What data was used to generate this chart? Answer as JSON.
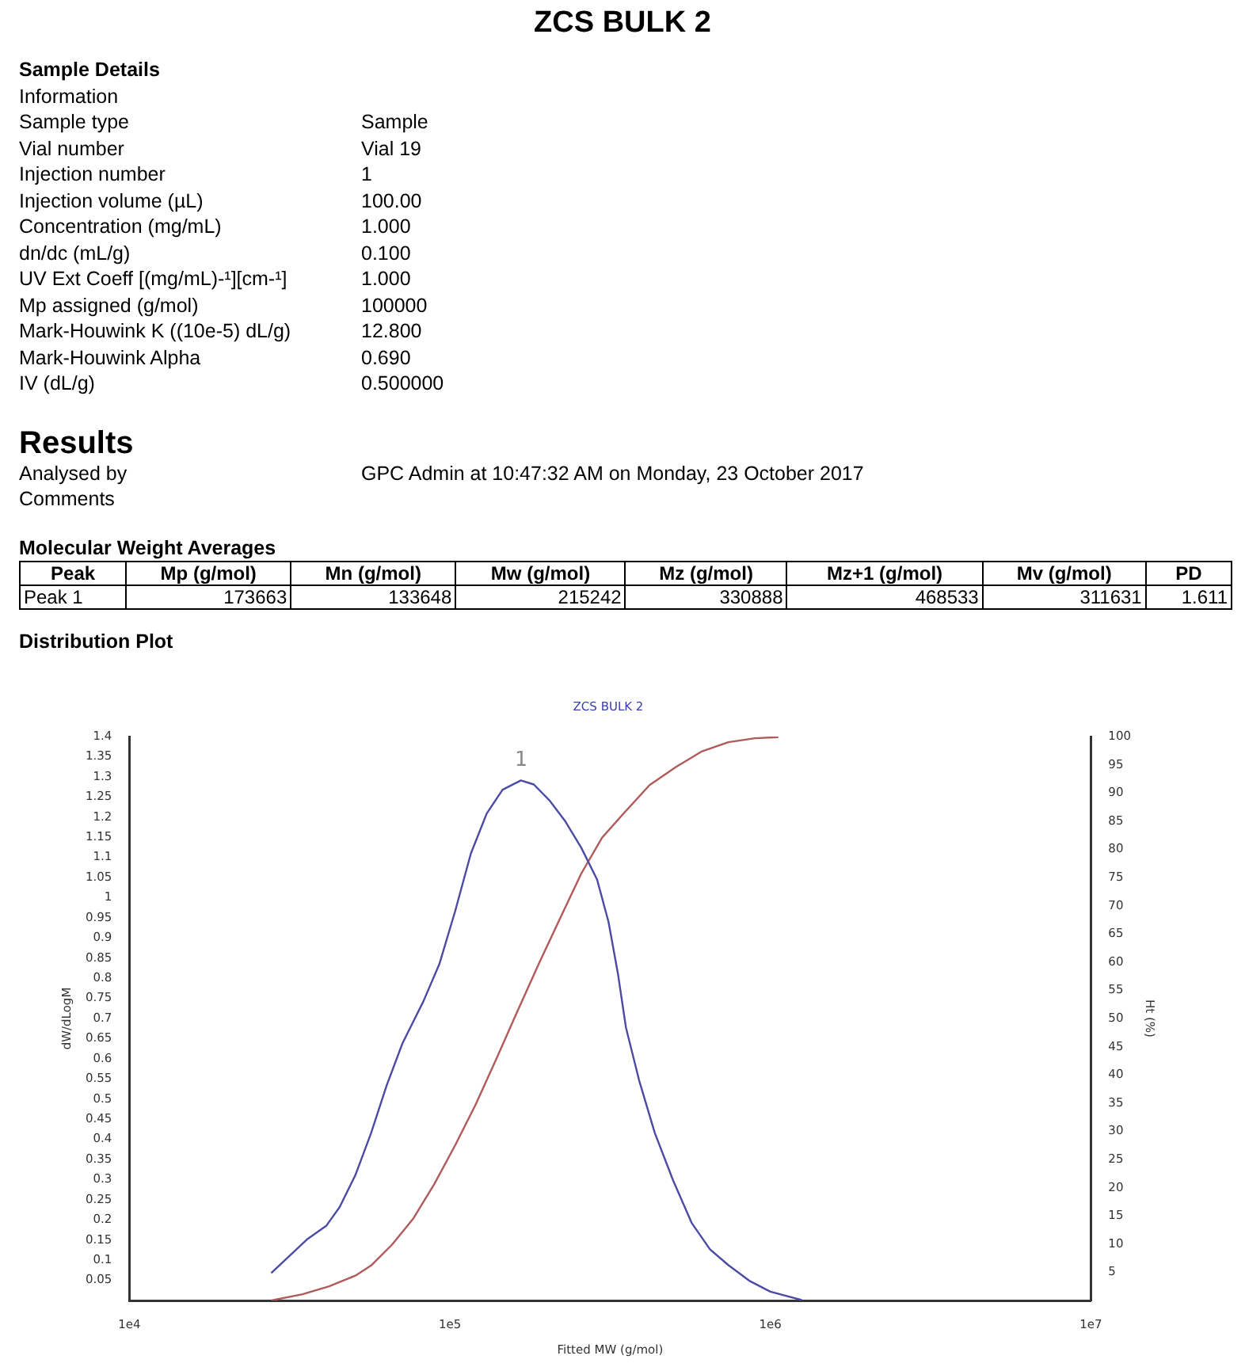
{
  "chart_data": [
    {
      "type": "other",
      "title": "ZCS BULK 2",
      "annotations": [
        "Sample Details",
        "Information",
        "Sample type",
        "Sample",
        "Vial number",
        "Vial 19",
        "Injection number",
        "1",
        "Injection volume (µL)",
        "100.00",
        "Concentration (mg/mL)",
        "1.000",
        "dn/dc (mL/g)",
        "0.100",
        "UV Ext Coeff [(mg/mL)-¹][cm-¹]",
        "1.000",
        "Mp assigned (g/mol)",
        "100000",
        "Mark-Houwink K ((10e-5) dL/g)",
        "12.800",
        "Mark-Houwink Alpha",
        "0.690",
        "IV (dL/g)",
        "0.500000",
        "Results",
        "Analysed by",
        "GPC Admin at 10:47:32 AM on Monday, 23 October 2017",
        "Comments",
        "Molecular Weight Averages",
        "Peak",
        "Mp (g/mol)",
        "Mn (g/mol)",
        "Mw (g/mol)",
        "Mz (g/mol)",
        "Mz+1 (g/mol)",
        "Mv (g/mol)",
        "PD",
        "Peak 1",
        "173663",
        "133648",
        "215242",
        "330888",
        "468533",
        "311631",
        "1.611",
        "Distribution Plot"
      ]
    },
    {
      "type": "line",
      "title": "ZCS BULK 2",
      "xlabel": "Fitted MW (g/mol)",
      "ylabel": "dW/dLogM",
      "y2label": "Ht (%)",
      "log": "x",
      "xlim": [
        10000,
        10000000
      ],
      "xticks": [
        {
          "value": 10000,
          "label": "1e4"
        },
        {
          "value": 100000,
          "label": "1e5"
        },
        {
          "value": 1000000,
          "label": "1e6"
        },
        {
          "value": 10000000,
          "label": "1e7"
        }
      ],
      "ylim": [
        0,
        1.4
      ],
      "yticks": [
        0.05,
        0.1,
        0.15,
        0.2,
        0.25,
        0.3,
        0.35,
        0.4,
        0.45,
        0.5,
        0.55,
        0.6,
        0.65,
        0.7,
        0.75,
        0.8,
        0.85,
        0.9,
        0.95,
        1,
        1.05,
        1.1,
        1.15,
        1.2,
        1.25,
        1.3,
        1.35,
        1.4
      ],
      "y2lim": [
        0,
        100
      ],
      "y2ticks": [
        5,
        10,
        15,
        20,
        25,
        30,
        35,
        40,
        45,
        50,
        55,
        60,
        65,
        70,
        75,
        80,
        85,
        90,
        95,
        100
      ],
      "series": [
        {
          "color": "#4b4ba6",
          "x": [
            27700,
            36000,
            41200,
            45300,
            50700,
            56800,
            63500,
            71100,
            82700,
            92700,
            103800,
            116300,
            130300,
            146000,
            166500,
            182800,
            204800,
            229400,
            257000,
            287900,
            312600,
            334800,
            354200,
            389300,
            435800,
            497300,
            567700,
            647800,
            738900,
            859300,
            1000000,
            1253000
          ],
          "values": [
            0.068,
            0.153,
            0.186,
            0.232,
            0.311,
            0.416,
            0.534,
            0.638,
            0.743,
            0.835,
            0.966,
            1.11,
            1.209,
            1.268,
            1.291,
            1.281,
            1.241,
            1.189,
            1.124,
            1.045,
            0.94,
            0.809,
            0.678,
            0.547,
            0.416,
            0.298,
            0.193,
            0.127,
            0.088,
            0.049,
            0.022,
            0.001
          ]
        },
        {
          "color": "#b05a5a",
          "axis": "y2",
          "x": [
            27700,
            34700,
            42000,
            50700,
            56800,
            66000,
            76800,
            89300,
            103800,
            120700,
            140500,
            163400,
            190100,
            220900,
            257000,
            298700,
            347600,
            419800,
            507000,
            612500,
            738900,
            893600,
            1059000
          ],
          "values": [
            0,
            1.1,
            2.5,
            4.4,
            6.2,
            9.9,
            14.5,
            20.6,
            27.5,
            34.9,
            43.2,
            51.6,
            59.9,
            67.8,
            75.7,
            82.1,
            86.3,
            91.4,
            94.6,
            97.4,
            99,
            99.7,
            99.9
          ]
        }
      ],
      "annotations": [
        "1"
      ]
    }
  ]
}
